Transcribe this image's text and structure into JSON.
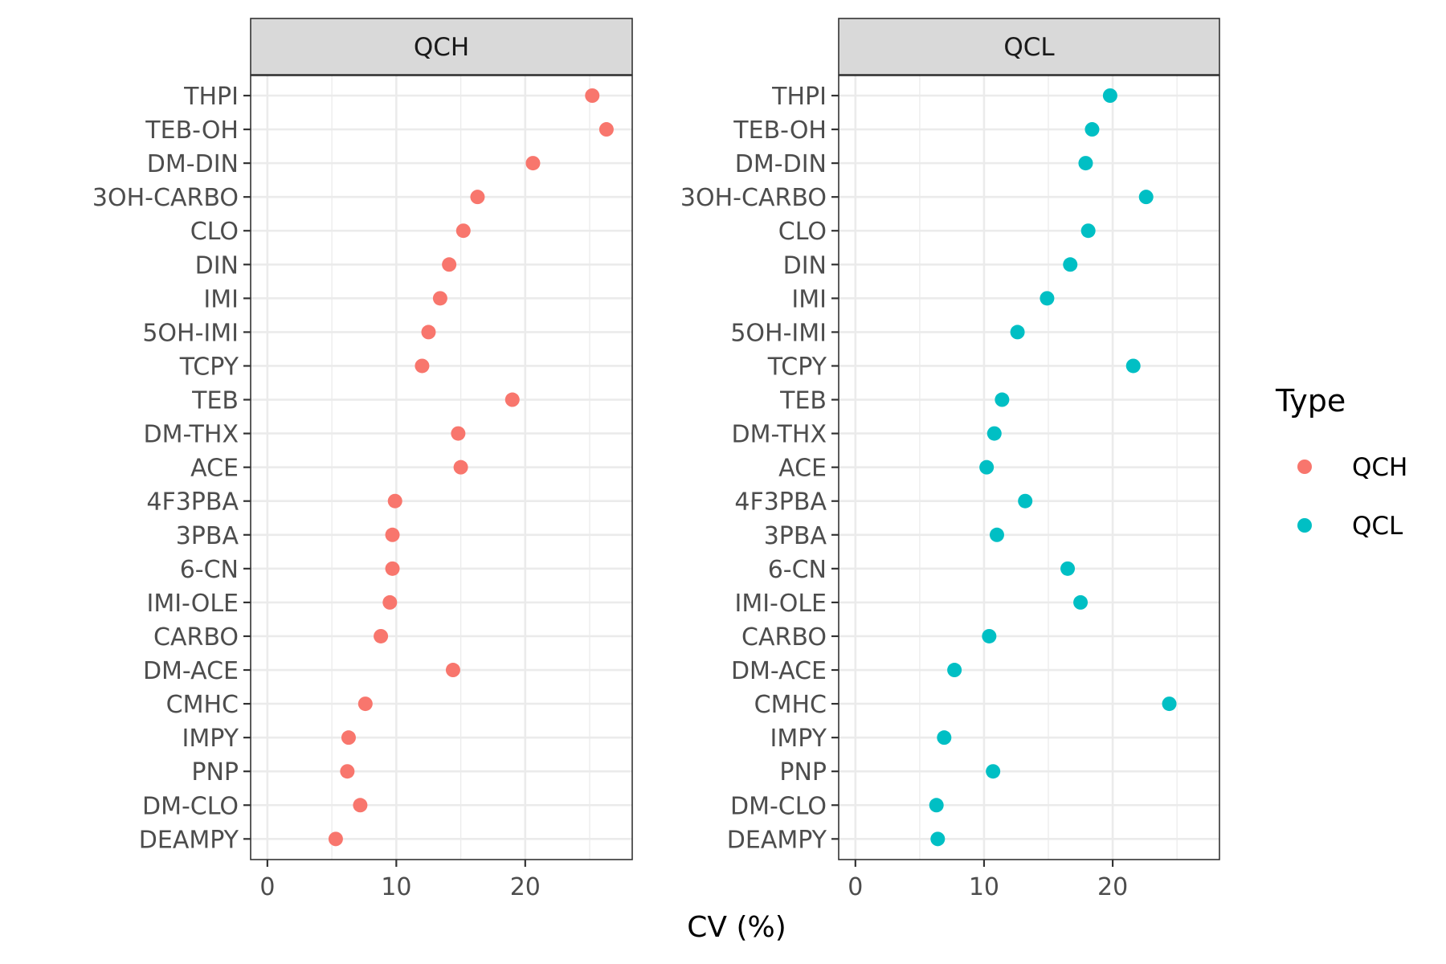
{
  "chart_data": {
    "type": "scatter",
    "xlabel": "CV (%)",
    "xlim": [
      -1.3,
      28.3
    ],
    "x_ticks": [
      0,
      10,
      20
    ],
    "grid": true,
    "legend": {
      "title": "Type",
      "placement": "right",
      "entries": [
        "QCH",
        "QCL"
      ]
    },
    "colors": {
      "QCH": "#F8766D",
      "QCL": "#00BFC4"
    },
    "categories": [
      "THPI",
      "TEB-OH",
      "DM-DIN",
      "3OH-CARBO",
      "CLO",
      "DIN",
      "IMI",
      "5OH-IMI",
      "TCPY",
      "TEB",
      "DM-THX",
      "ACE",
      "4F3PBA",
      "3PBA",
      "6-CN",
      "IMI-OLE",
      "CARBO",
      "DM-ACE",
      "CMHC",
      "IMPY",
      "PNP",
      "DM-CLO",
      "DEAMPY"
    ],
    "panels": [
      {
        "title": "QCH",
        "series": "QCH",
        "values": [
          25.2,
          26.3,
          20.6,
          16.3,
          15.2,
          14.1,
          13.4,
          12.5,
          12.0,
          19.0,
          14.8,
          15.0,
          9.9,
          9.7,
          9.7,
          9.5,
          8.8,
          14.4,
          7.6,
          6.3,
          6.2,
          7.2,
          5.3
        ]
      },
      {
        "title": "QCL",
        "series": "QCL",
        "values": [
          19.8,
          18.4,
          17.9,
          22.6,
          18.1,
          16.7,
          14.9,
          12.6,
          21.6,
          11.4,
          10.8,
          10.2,
          13.2,
          11.0,
          16.5,
          17.5,
          10.4,
          7.7,
          24.4,
          6.9,
          10.7,
          6.3,
          6.4
        ]
      }
    ]
  }
}
